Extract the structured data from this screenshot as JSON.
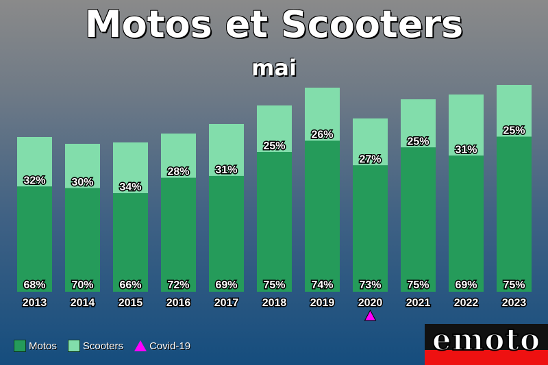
{
  "title": "Motos et Scooters",
  "subtitle": "mai",
  "logo": "emoto",
  "legend": {
    "motos": "Motos",
    "scooters": "Scooters",
    "covid": "Covid-19"
  },
  "colors": {
    "motos": "#259b5a",
    "scooters": "#82ddab",
    "covid": "#ff00ff"
  },
  "chart_data": {
    "type": "bar",
    "stacked": true,
    "categories": [
      "2013",
      "2014",
      "2015",
      "2016",
      "2017",
      "2018",
      "2019",
      "2020",
      "2021",
      "2022",
      "2023"
    ],
    "totals": [
      226,
      216,
      218,
      231,
      245,
      272,
      298,
      253,
      281,
      288,
      302
    ],
    "series": [
      {
        "name": "Motos",
        "percent_labels": [
          "68%",
          "70%",
          "66%",
          "72%",
          "69%",
          "75%",
          "74%",
          "73%",
          "75%",
          "69%",
          "75%"
        ]
      },
      {
        "name": "Scooters",
        "percent_labels": [
          "32%",
          "30%",
          "34%",
          "28%",
          "31%",
          "25%",
          "26%",
          "27%",
          "25%",
          "31%",
          "25%"
        ]
      }
    ],
    "annotations": [
      {
        "category": "2020",
        "marker": "triangle",
        "label": "Covid-19"
      }
    ],
    "grid": false,
    "legend_position": "bottom-left"
  }
}
